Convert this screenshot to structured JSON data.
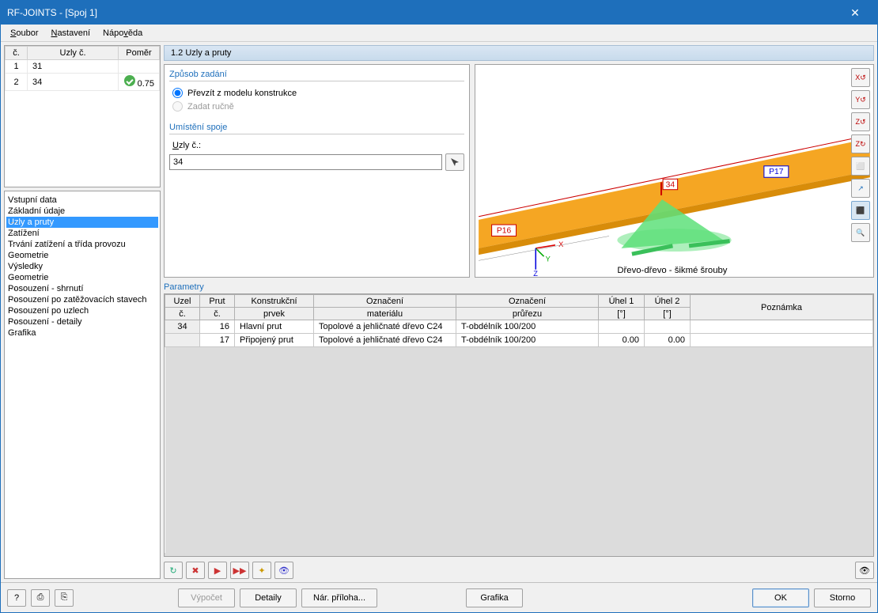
{
  "window": {
    "title": "RF-JOINTS - [Spoj 1]"
  },
  "menu": {
    "items": [
      "Soubor",
      "Nastavení",
      "Nápověda"
    ]
  },
  "list": {
    "headers": {
      "num": "č.",
      "nodes": "Uzly č.",
      "ratio": "Poměr"
    },
    "rows": [
      {
        "num": "1",
        "nodes": "31",
        "ratio": ""
      },
      {
        "num": "2",
        "nodes": "34",
        "ratio": "0.75",
        "ok": true
      }
    ]
  },
  "tree": {
    "input_label": "Vstupní data",
    "input_items": [
      "Základní údaje",
      "Uzly a pruty",
      "Zatížení",
      "Trvání zatížení a třída provozu",
      "Geometrie"
    ],
    "input_selected": 1,
    "results_label": "Výsledky",
    "results_items": [
      "Geometrie",
      "Posouzení - shrnutí",
      "Posouzení po zatěžovacích stavech",
      "Posouzení po uzlech",
      "Posouzení - detaily",
      "Grafika"
    ]
  },
  "section": {
    "title": "1.2 Uzly a pruty"
  },
  "input_method": {
    "legend": "Způsob zadání",
    "opt1": "Převzít z modelu konstrukce",
    "opt2": "Zadat ručně"
  },
  "location": {
    "legend": "Umístění spoje",
    "label": "Uzly č.:",
    "value": "34"
  },
  "viewport": {
    "caption": "Dřevo-dřevo - šikmé šrouby",
    "node_label": "34",
    "beam1": "P16",
    "beam2": "P17",
    "colors": {
      "beam": "#f5a623",
      "beam_dark": "#d88c0a",
      "support": "#5ee07a",
      "axis_x": "#d00",
      "axis_y": "#0a0",
      "axis_z": "#00d"
    },
    "toolbox": [
      "X↺",
      "Y↺",
      "Z↺",
      "Z↻",
      "⬜",
      "↗",
      "⬛",
      "🔍"
    ]
  },
  "params": {
    "legend": "Parametry",
    "headers": {
      "uzel": "Uzel č.",
      "prut": "Prut č.",
      "prvek": "Konstrukční prvek",
      "material": "Označení materiálu",
      "prurez": "Označení průřezu",
      "u1": "Úhel 1 [°]",
      "u2": "Úhel 2 [°]",
      "note": "Poznámka"
    },
    "headers_split": {
      "uzel1": "Uzel",
      "uzel2": "č.",
      "prut1": "Prut",
      "prut2": "č.",
      "prvek1": "Konstrukční",
      "prvek2": "prvek",
      "mat1": "Označení",
      "mat2": "materiálu",
      "prz1": "Označení",
      "prz2": "průřezu",
      "u1a": "Úhel 1",
      "u1b": "[°]",
      "u2a": "Úhel 2",
      "u2b": "[°]"
    },
    "rows": [
      {
        "uzel": "34",
        "prut": "16",
        "prvek": "Hlavní prut",
        "material": "Topolové a jehličnaté dřevo C24",
        "prurez": "T-obdélník 100/200",
        "u1": "",
        "u2": ""
      },
      {
        "uzel": "",
        "prut": "17",
        "prvek": "Připojený prut",
        "material": "Topolové a jehličnaté dřevo C24",
        "prurez": "T-obdélník 100/200",
        "u1": "0.00",
        "u2": "0.00"
      }
    ],
    "toolbar": [
      "↻",
      "✖",
      "▶",
      "▶▶",
      "✦",
      "👁"
    ]
  },
  "footer": {
    "icons": [
      "?",
      "⎙",
      "⎘"
    ],
    "calc": "Výpočet",
    "details": "Detaily",
    "annex": "Nár. příloha...",
    "grafika": "Grafika",
    "ok": "OK",
    "cancel": "Storno"
  }
}
